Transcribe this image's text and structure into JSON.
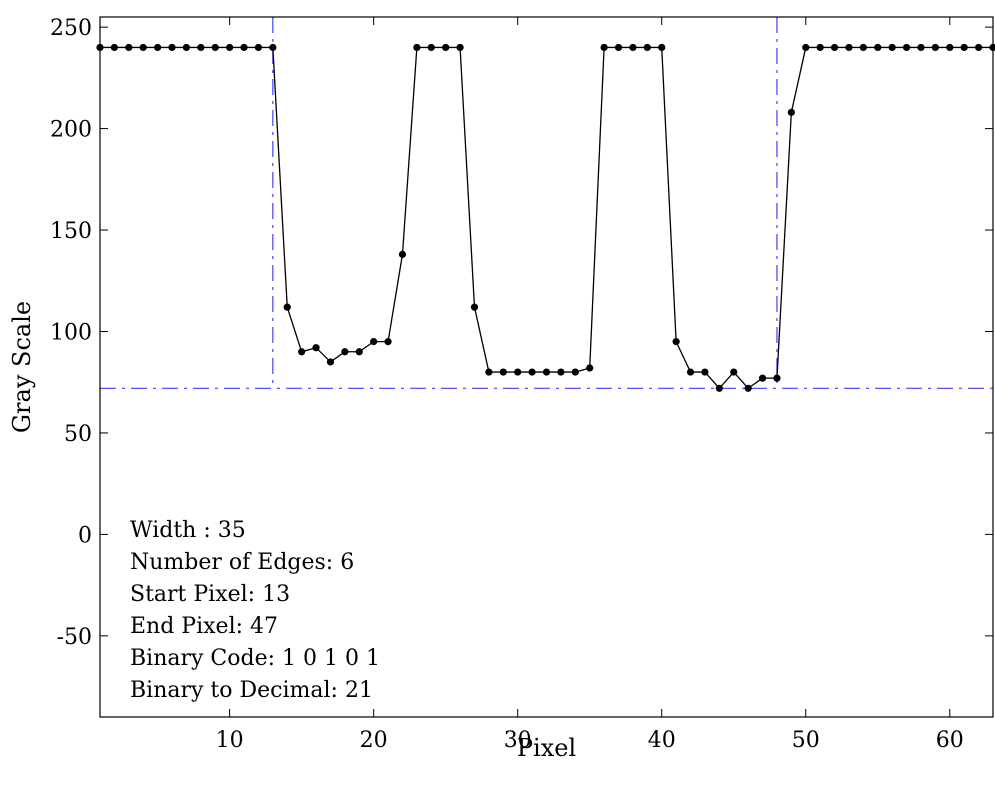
{
  "chart_data": {
    "type": "line",
    "xlabel": "Pixel",
    "ylabel": "Gray Scale",
    "xlim": [
      1,
      63
    ],
    "ylim": [
      -90,
      255
    ],
    "xticks": [
      10,
      20,
      30,
      40,
      50,
      60
    ],
    "yticks": [
      -50,
      0,
      50,
      100,
      150,
      200,
      250
    ],
    "grid": false,
    "series": [
      {
        "color": "#000000",
        "marker": "dot",
        "x": [
          1,
          2,
          3,
          4,
          5,
          6,
          7,
          8,
          9,
          10,
          11,
          12,
          13,
          14,
          15,
          16,
          17,
          18,
          19,
          20,
          21,
          22,
          23,
          24,
          25,
          26,
          27,
          28,
          29,
          30,
          31,
          32,
          33,
          34,
          35,
          36,
          37,
          38,
          39,
          40,
          41,
          42,
          43,
          44,
          45,
          46,
          47,
          48,
          49,
          50,
          51,
          52,
          53,
          54,
          55,
          56,
          57,
          58,
          59,
          60,
          61,
          62,
          63
        ],
        "y": [
          240,
          240,
          240,
          240,
          240,
          240,
          240,
          240,
          240,
          240,
          240,
          240,
          240,
          112,
          90,
          92,
          85,
          90,
          90,
          95,
          95,
          138,
          240,
          240,
          240,
          240,
          112,
          80,
          80,
          80,
          80,
          80,
          80,
          80,
          82,
          240,
          240,
          240,
          240,
          240,
          95,
          80,
          80,
          72,
          80,
          72,
          77,
          77,
          208,
          240,
          240,
          240,
          240,
          240,
          240,
          240,
          240,
          240,
          240,
          240,
          240,
          240,
          240
        ]
      }
    ],
    "reference_lines": {
      "color": "#4040ff",
      "style": "dash-dot",
      "horizontal_y": 72,
      "vertical_x": [
        13,
        48
      ]
    },
    "annotations": [
      "Width : 35",
      "Number of Edges: 6",
      "Start Pixel: 13",
      "End Pixel: 47",
      "Binary Code: 1  0  1  0  1",
      "Binary to Decimal: 21"
    ]
  }
}
